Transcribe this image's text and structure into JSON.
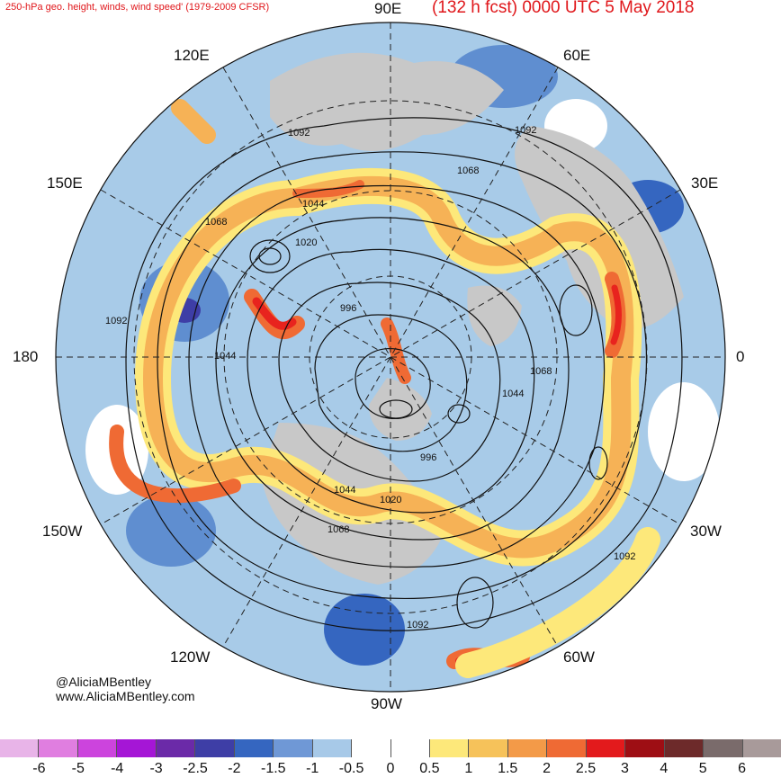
{
  "header": {
    "left_title": "250-hPa geo. height, winds, wind speed' (1979-2009 CFSR)",
    "right_title": "(132 h fcst) 0000 UTC 5 May 2018"
  },
  "credits": {
    "handle": "@AliciaMBentley",
    "website": "www.AliciaMBentley.com"
  },
  "map": {
    "projection": "north-polar-stereographic",
    "longitude_labels": {
      "n90e": "90E",
      "n60e": "60E",
      "n30e": "30E",
      "n0": "0",
      "n30w": "30W",
      "n60w": "60W",
      "n90w": "90W",
      "n120w": "120W",
      "n150w": "150W",
      "n180": "180",
      "n150e": "150E",
      "n120e": "120E"
    },
    "contour_labels": {
      "c1092a": "1092",
      "c1092b": "1092",
      "c1068a": "1068",
      "c1044a": "1044",
      "c1020a": "1020",
      "c996a": "996",
      "c1092c": "1092",
      "c1044b": "1044",
      "c1044c": "1044",
      "c1068b": "1068",
      "c996b": "996",
      "c1020b": "1020",
      "c1068c": "1068",
      "c1092d": "1092",
      "c1068d": "1068",
      "c1092e": "1092"
    },
    "colors": {
      "land": "#c8c8c8",
      "strong_neg": "#2e5ab8",
      "neg": "#5f8ed0",
      "weak_neg": "#a8cbe8",
      "neutral": "#ffffff",
      "weak_pos": "#fde87a",
      "pos": "#f6b256",
      "strong_pos": "#ef6a34",
      "max_pos": "#e8231e"
    }
  },
  "colorbar": {
    "ticks": [
      "-6",
      "-5",
      "-4",
      "-3",
      "-2.5",
      "-2",
      "-1.5",
      "-1",
      "-0.5",
      "0",
      "0.5",
      "1",
      "1.5",
      "2",
      "2.5",
      "3",
      "4",
      "5",
      "6"
    ],
    "colors": [
      "#e8b4e8",
      "#e07ee0",
      "#cc44dd",
      "#a516d6",
      "#6b2aa8",
      "#3e3ea6",
      "#3566c0",
      "#6f98d6",
      "#a7c9e8",
      "#ffffff",
      "#ffffff",
      "#fde87a",
      "#f6c25a",
      "#f39a48",
      "#ef6a34",
      "#e31a1c",
      "#9e0e14",
      "#6d2a2a",
      "#7a6b6b",
      "#a89a9a"
    ]
  }
}
